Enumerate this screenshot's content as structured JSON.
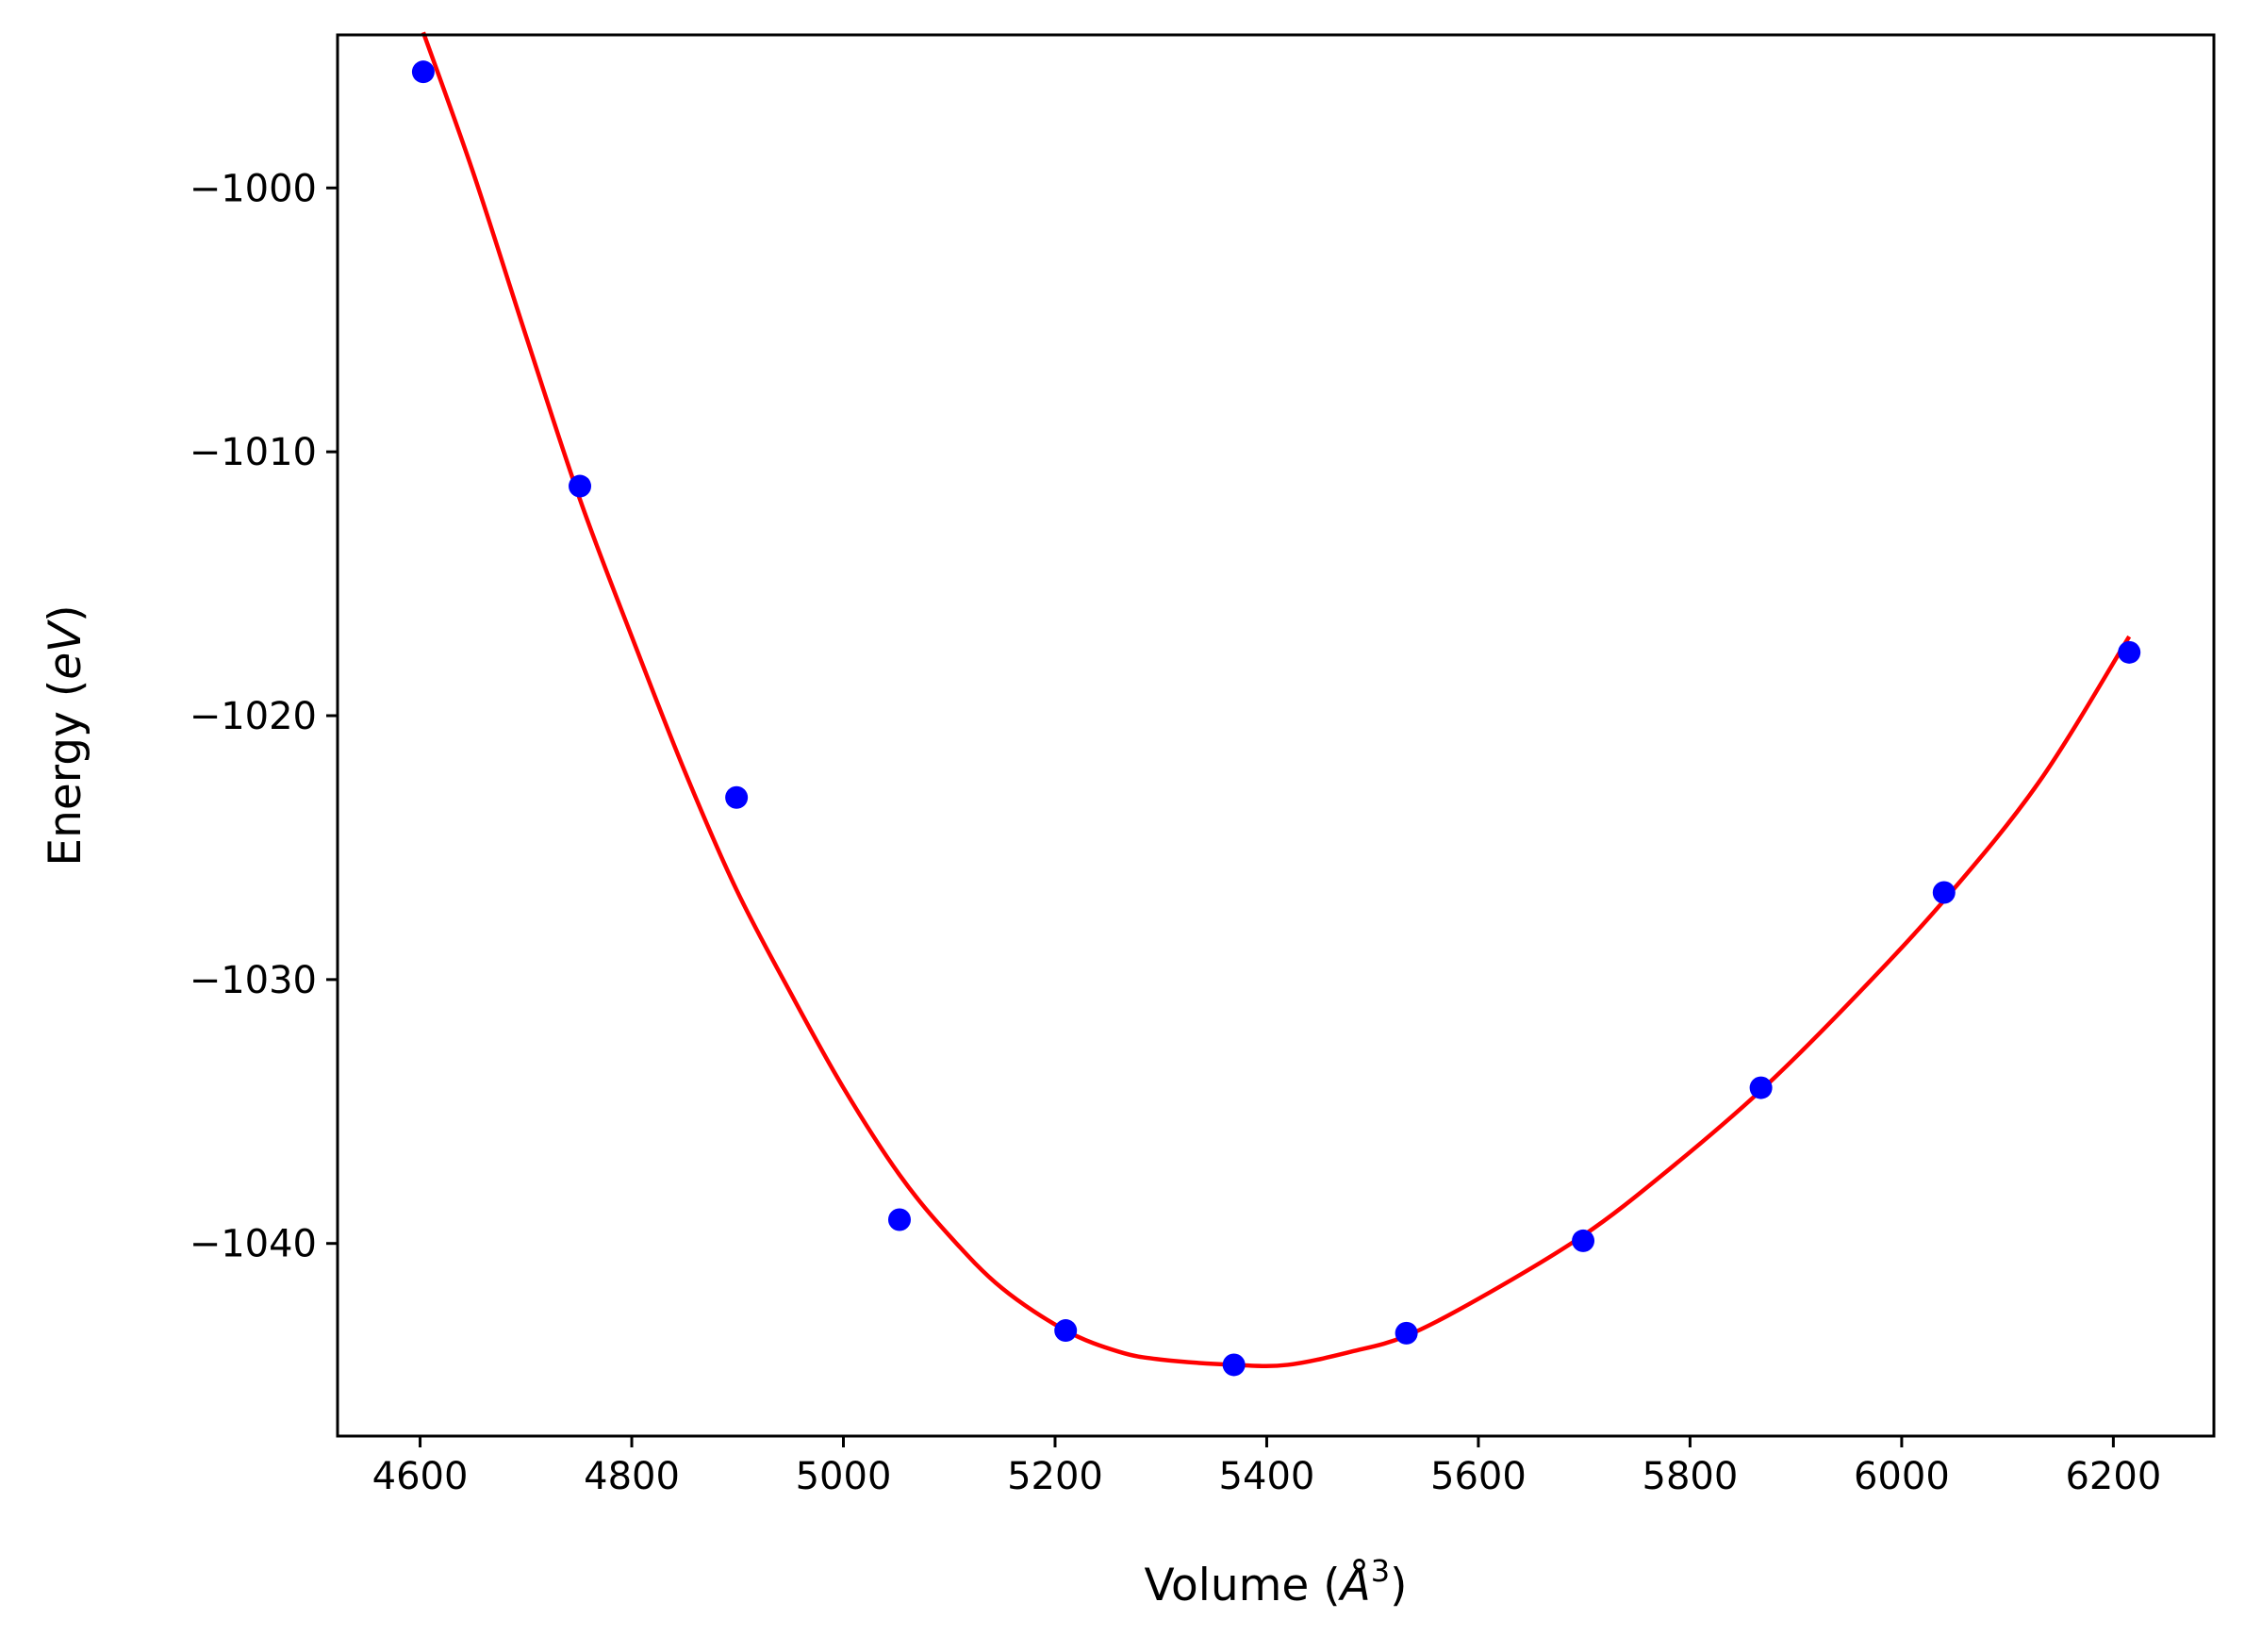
{
  "chart_data": {
    "type": "scatter",
    "title": "",
    "xlabel": {
      "prefix": "Volume (",
      "unit": "Å",
      "exponent": "3",
      "suffix": ")"
    },
    "ylabel": {
      "prefix": "Energy (",
      "unit": "eV",
      "suffix": ")"
    },
    "xlim": [
      4522,
      6295
    ],
    "ylim": [
      -1047.3,
      -994.2
    ],
    "x_ticks": [
      4600,
      4800,
      5000,
      5200,
      5400,
      5600,
      5800,
      6000,
      6200
    ],
    "x_tick_labels": [
      "4600",
      "4800",
      "5000",
      "5200",
      "5400",
      "5600",
      "5800",
      "6000",
      "6200"
    ],
    "y_ticks": [
      -1000,
      -1010,
      -1020,
      -1030,
      -1040
    ],
    "y_tick_labels": [
      "−1000",
      "−1010",
      "−1020",
      "−1030",
      "−1040"
    ],
    "grid": false,
    "series": [
      {
        "kind": "points",
        "color": "#0000ff",
        "x": [
          4603,
          4751,
          4899,
          5053,
          5210,
          5369,
          5532,
          5699,
          5867,
          6040,
          6215
        ],
        "y": [
          -995.6,
          -1011.3,
          -1023.1,
          -1039.1,
          -1043.3,
          -1044.6,
          -1043.4,
          -1039.9,
          -1034.1,
          -1026.7,
          -1017.6
        ]
      },
      {
        "kind": "fit-curve",
        "color": "#ff0000",
        "x": [
          4603,
          4650,
          4700,
          4751,
          4800,
          4850,
          4899,
          4950,
          5000,
          5053,
          5100,
          5150,
          5210,
          5260,
          5300,
          5369,
          5420,
          5480,
          5532,
          5600,
          5699,
          5780,
          5867,
          5950,
          6040,
          6130,
          6215
        ],
        "y": [
          -994.1,
          -999.4,
          -1005.6,
          -1011.8,
          -1017.0,
          -1022.1,
          -1026.6,
          -1030.5,
          -1034.1,
          -1037.4,
          -1039.7,
          -1041.7,
          -1043.3,
          -1044.1,
          -1044.4,
          -1044.6,
          -1044.6,
          -1044.1,
          -1043.5,
          -1042.1,
          -1039.7,
          -1037.2,
          -1034.2,
          -1030.9,
          -1027.0,
          -1022.5,
          -1017.0
        ]
      }
    ]
  }
}
